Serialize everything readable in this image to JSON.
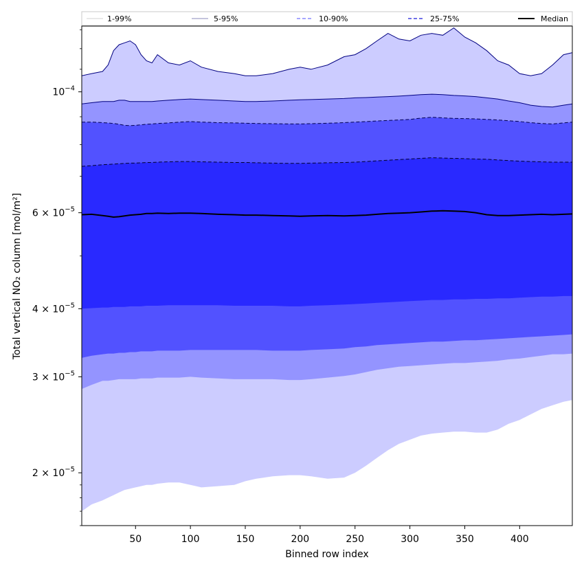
{
  "chart_data": {
    "type": "area",
    "title": "",
    "xlabel": "Binned row index",
    "ylabel": "Total vertical NO₂ column [mol/m²]",
    "yscale": "log",
    "xlim": [
      1,
      448
    ],
    "ylim": [
      1.6e-05,
      0.000132
    ],
    "grid": false,
    "legend_placement": "top",
    "x_ticks": [
      {
        "value": 50,
        "label": "50"
      },
      {
        "value": 100,
        "label": "100"
      },
      {
        "value": 150,
        "label": "150"
      },
      {
        "value": 200,
        "label": "200"
      },
      {
        "value": 250,
        "label": "250"
      },
      {
        "value": 300,
        "label": "300"
      },
      {
        "value": 350,
        "label": "350"
      },
      {
        "value": 400,
        "label": "400"
      }
    ],
    "y_ticks": [
      {
        "value": 2e-05,
        "mantissa": "2",
        "base": "10",
        "exp": "−5"
      },
      {
        "value": 3e-05,
        "mantissa": "3",
        "base": "10",
        "exp": "−5"
      },
      {
        "value": 4e-05,
        "mantissa": "4",
        "base": "10",
        "exp": "−5"
      },
      {
        "value": 6e-05,
        "mantissa": "6",
        "base": "10",
        "exp": "−5"
      },
      {
        "value": 0.0001,
        "mantissa": "",
        "base": "10",
        "exp": "−4"
      }
    ],
    "y_minor_ticks": [
      1.6e-05,
      1.7e-05,
      1.8e-05,
      1.9e-05,
      5e-05,
      7e-05,
      8e-05,
      9e-05,
      0.00011,
      0.00012,
      0.00013
    ],
    "x": [
      1,
      10,
      20,
      25,
      30,
      35,
      40,
      45,
      50,
      55,
      60,
      65,
      70,
      80,
      90,
      100,
      110,
      125,
      140,
      150,
      160,
      175,
      190,
      200,
      210,
      225,
      240,
      250,
      260,
      270,
      280,
      290,
      300,
      310,
      320,
      330,
      340,
      350,
      360,
      370,
      380,
      390,
      400,
      410,
      420,
      430,
      440,
      448
    ],
    "series": [
      {
        "name": "1-99%",
        "color": "#ccccff",
        "line_color": "#000080",
        "line_style": "solid",
        "lower": [
          1.7e-05,
          1.75e-05,
          1.78e-05,
          1.8e-05,
          1.82e-05,
          1.84e-05,
          1.86e-05,
          1.87e-05,
          1.88e-05,
          1.89e-05,
          1.9e-05,
          1.9e-05,
          1.91e-05,
          1.92e-05,
          1.92e-05,
          1.9e-05,
          1.88e-05,
          1.89e-05,
          1.9e-05,
          1.93e-05,
          1.95e-05,
          1.97e-05,
          1.98e-05,
          1.98e-05,
          1.97e-05,
          1.95e-05,
          1.96e-05,
          2e-05,
          2.06e-05,
          2.13e-05,
          2.2e-05,
          2.26e-05,
          2.3e-05,
          2.34e-05,
          2.36e-05,
          2.37e-05,
          2.38e-05,
          2.38e-05,
          2.37e-05,
          2.37e-05,
          2.4e-05,
          2.46e-05,
          2.5e-05,
          2.56e-05,
          2.62e-05,
          2.66e-05,
          2.7e-05,
          2.72e-05
        ],
        "upper": [
          0.000107,
          0.000108,
          0.000109,
          0.000112,
          0.000119,
          0.000122,
          0.000123,
          0.000124,
          0.000122,
          0.000117,
          0.000114,
          0.000113,
          0.000117,
          0.000113,
          0.000112,
          0.000114,
          0.000111,
          0.000109,
          0.000108,
          0.000107,
          0.000107,
          0.000108,
          0.00011,
          0.000111,
          0.00011,
          0.000112,
          0.000116,
          0.000117,
          0.00012,
          0.000124,
          0.000128,
          0.000125,
          0.000124,
          0.000127,
          0.000128,
          0.000127,
          0.000131,
          0.000126,
          0.000123,
          0.000119,
          0.000114,
          0.000112,
          0.000108,
          0.000107,
          0.000108,
          0.000112,
          0.000117,
          0.000118
        ]
      },
      {
        "name": "5-95%",
        "color": "#9494ff",
        "line_color": "#000080",
        "line_style": "solid",
        "lower": [
          2.85e-05,
          2.9e-05,
          2.95e-05,
          2.95e-05,
          2.96e-05,
          2.97e-05,
          2.97e-05,
          2.97e-05,
          2.97e-05,
          2.98e-05,
          2.98e-05,
          2.98e-05,
          2.99e-05,
          2.99e-05,
          2.99e-05,
          3e-05,
          2.99e-05,
          2.98e-05,
          2.97e-05,
          2.97e-05,
          2.97e-05,
          2.97e-05,
          2.96e-05,
          2.96e-05,
          2.97e-05,
          2.99e-05,
          3.01e-05,
          3.03e-05,
          3.06e-05,
          3.09e-05,
          3.11e-05,
          3.13e-05,
          3.14e-05,
          3.15e-05,
          3.16e-05,
          3.17e-05,
          3.18e-05,
          3.18e-05,
          3.19e-05,
          3.2e-05,
          3.21e-05,
          3.23e-05,
          3.24e-05,
          3.26e-05,
          3.28e-05,
          3.3e-05,
          3.3e-05,
          3.31e-05
        ],
        "upper": [
          9.5e-05,
          9.55e-05,
          9.6e-05,
          9.6e-05,
          9.6e-05,
          9.65e-05,
          9.65e-05,
          9.6e-05,
          9.6e-05,
          9.6e-05,
          9.6e-05,
          9.6e-05,
          9.62e-05,
          9.65e-05,
          9.68e-05,
          9.7e-05,
          9.68e-05,
          9.65e-05,
          9.62e-05,
          9.6e-05,
          9.6e-05,
          9.62e-05,
          9.65e-05,
          9.67e-05,
          9.68e-05,
          9.7e-05,
          9.72e-05,
          9.75e-05,
          9.76e-05,
          9.78e-05,
          9.8e-05,
          9.82e-05,
          9.85e-05,
          9.88e-05,
          9.9e-05,
          9.88e-05,
          9.85e-05,
          9.83e-05,
          9.8e-05,
          9.75e-05,
          9.7e-05,
          9.62e-05,
          9.55e-05,
          9.45e-05,
          9.4e-05,
          9.38e-05,
          9.45e-05,
          9.5e-05
        ]
      },
      {
        "name": "10-90%",
        "color": "#5252ff",
        "line_color": "#000050",
        "line_style": "dashed",
        "lower": [
          3.25e-05,
          3.28e-05,
          3.3e-05,
          3.31e-05,
          3.31e-05,
          3.32e-05,
          3.32e-05,
          3.33e-05,
          3.33e-05,
          3.34e-05,
          3.34e-05,
          3.34e-05,
          3.35e-05,
          3.35e-05,
          3.35e-05,
          3.36e-05,
          3.36e-05,
          3.36e-05,
          3.36e-05,
          3.36e-05,
          3.36e-05,
          3.35e-05,
          3.35e-05,
          3.35e-05,
          3.36e-05,
          3.37e-05,
          3.38e-05,
          3.4e-05,
          3.41e-05,
          3.43e-05,
          3.44e-05,
          3.45e-05,
          3.46e-05,
          3.47e-05,
          3.48e-05,
          3.48e-05,
          3.49e-05,
          3.5e-05,
          3.5e-05,
          3.51e-05,
          3.52e-05,
          3.53e-05,
          3.54e-05,
          3.55e-05,
          3.56e-05,
          3.57e-05,
          3.58e-05,
          3.59e-05
        ],
        "upper": [
          8.8e-05,
          8.8e-05,
          8.78e-05,
          8.77e-05,
          8.75e-05,
          8.72e-05,
          8.68e-05,
          8.67e-05,
          8.68e-05,
          8.7e-05,
          8.72e-05,
          8.73e-05,
          8.75e-05,
          8.77e-05,
          8.8e-05,
          8.82e-05,
          8.8e-05,
          8.78e-05,
          8.77e-05,
          8.76e-05,
          8.75e-05,
          8.74e-05,
          8.73e-05,
          8.73e-05,
          8.74e-05,
          8.76e-05,
          8.78e-05,
          8.8e-05,
          8.82e-05,
          8.84e-05,
          8.86e-05,
          8.88e-05,
          8.9e-05,
          8.95e-05,
          8.98e-05,
          8.96e-05,
          8.94e-05,
          8.93e-05,
          8.92e-05,
          8.9e-05,
          8.88e-05,
          8.85e-05,
          8.82e-05,
          8.78e-05,
          8.75e-05,
          8.73e-05,
          8.77e-05,
          8.8e-05
        ]
      },
      {
        "name": "25-75%",
        "color": "#2929ff",
        "line_color": "#000030",
        "line_style": "dashed",
        "lower": [
          4e-05,
          4.01e-05,
          4.02e-05,
          4.02e-05,
          4.03e-05,
          4.03e-05,
          4.03e-05,
          4.04e-05,
          4.04e-05,
          4.04e-05,
          4.05e-05,
          4.05e-05,
          4.05e-05,
          4.06e-05,
          4.06e-05,
          4.06e-05,
          4.06e-05,
          4.06e-05,
          4.05e-05,
          4.05e-05,
          4.05e-05,
          4.05e-05,
          4.04e-05,
          4.04e-05,
          4.05e-05,
          4.06e-05,
          4.07e-05,
          4.08e-05,
          4.09e-05,
          4.1e-05,
          4.11e-05,
          4.12e-05,
          4.13e-05,
          4.14e-05,
          4.15e-05,
          4.15e-05,
          4.16e-05,
          4.16e-05,
          4.17e-05,
          4.17e-05,
          4.18e-05,
          4.18e-05,
          4.19e-05,
          4.2e-05,
          4.21e-05,
          4.21e-05,
          4.22e-05,
          4.22e-05
        ],
        "upper": [
          7.3e-05,
          7.32e-05,
          7.35e-05,
          7.36e-05,
          7.37e-05,
          7.38e-05,
          7.39e-05,
          7.4e-05,
          7.4e-05,
          7.41e-05,
          7.42e-05,
          7.42e-05,
          7.43e-05,
          7.44e-05,
          7.45e-05,
          7.45e-05,
          7.44e-05,
          7.43e-05,
          7.42e-05,
          7.42e-05,
          7.41e-05,
          7.4e-05,
          7.39e-05,
          7.39e-05,
          7.4e-05,
          7.41e-05,
          7.42e-05,
          7.43e-05,
          7.45e-05,
          7.47e-05,
          7.49e-05,
          7.51e-05,
          7.53e-05,
          7.55e-05,
          7.57e-05,
          7.56e-05,
          7.55e-05,
          7.54e-05,
          7.53e-05,
          7.52e-05,
          7.5e-05,
          7.48e-05,
          7.46e-05,
          7.45e-05,
          7.44e-05,
          7.43e-05,
          7.43e-05,
          7.43e-05
        ]
      },
      {
        "name": "Median",
        "color": "#000000",
        "line_style": "solid",
        "values": [
          5.95e-05,
          5.96e-05,
          5.93e-05,
          5.91e-05,
          5.89e-05,
          5.9e-05,
          5.92e-05,
          5.94e-05,
          5.95e-05,
          5.96e-05,
          5.98e-05,
          5.98e-05,
          5.99e-05,
          5.98e-05,
          5.99e-05,
          5.99e-05,
          5.98e-05,
          5.96e-05,
          5.95e-05,
          5.94e-05,
          5.94e-05,
          5.93e-05,
          5.92e-05,
          5.91e-05,
          5.92e-05,
          5.93e-05,
          5.92e-05,
          5.93e-05,
          5.94e-05,
          5.96e-05,
          5.98e-05,
          5.99e-05,
          6e-05,
          6.02e-05,
          6.04e-05,
          6.05e-05,
          6.04e-05,
          6.03e-05,
          6e-05,
          5.95e-05,
          5.93e-05,
          5.93e-05,
          5.94e-05,
          5.95e-05,
          5.96e-05,
          5.95e-05,
          5.96e-05,
          5.97e-05
        ]
      }
    ]
  }
}
